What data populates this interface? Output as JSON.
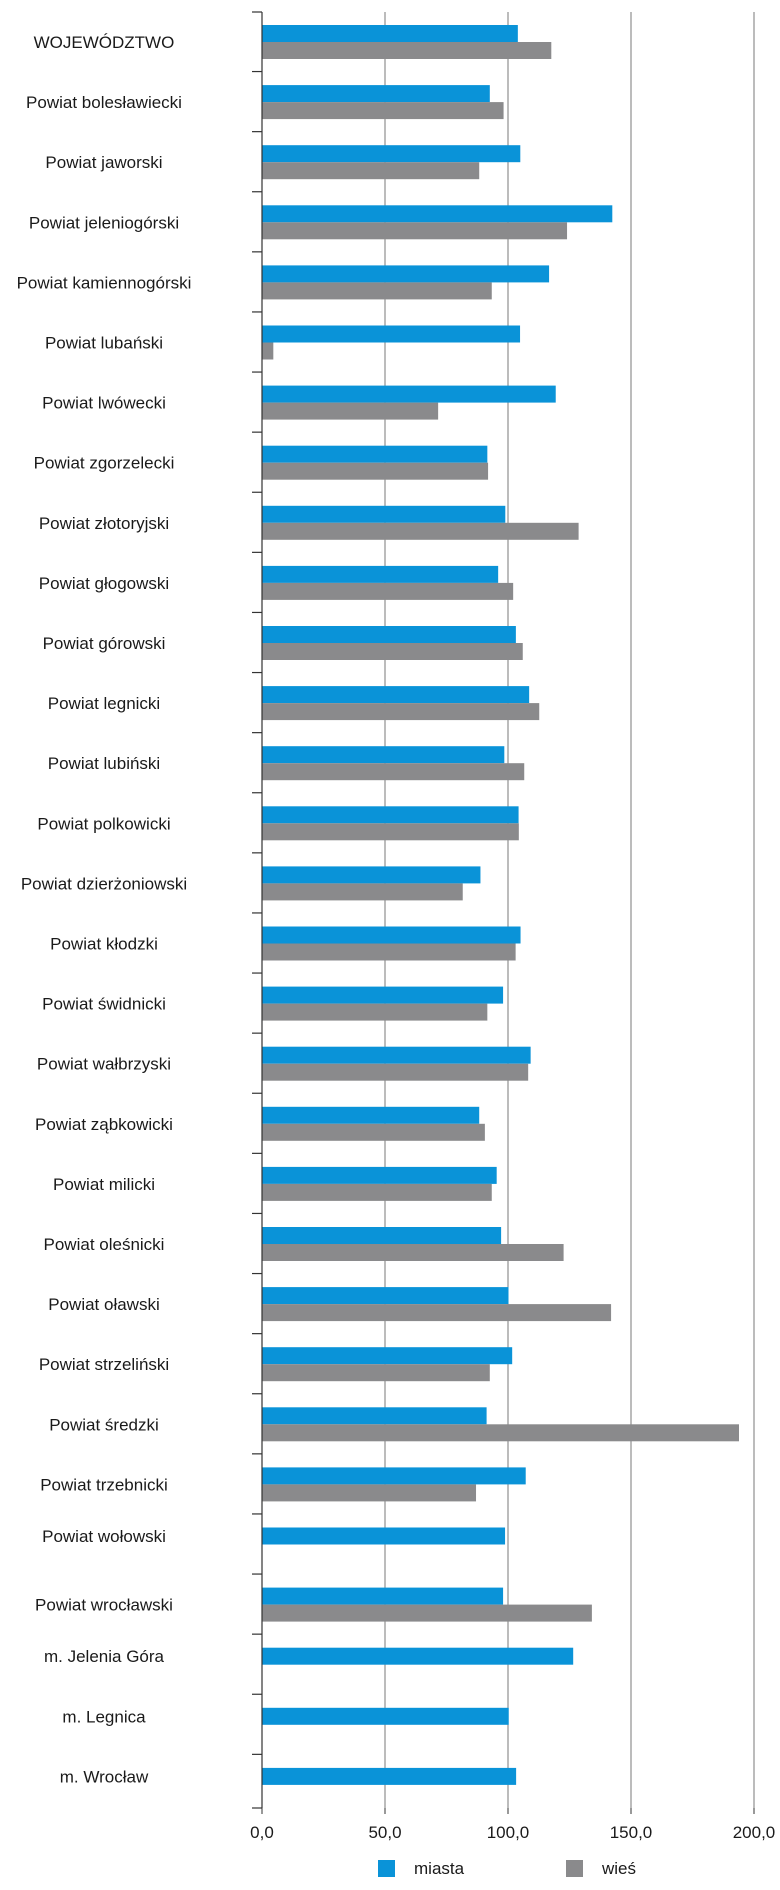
{
  "chart_data": {
    "type": "bar",
    "orientation": "horizontal",
    "title": "",
    "xlabel": "",
    "ylabel": "",
    "xlim": [
      0,
      200
    ],
    "x_ticks": [
      0,
      50,
      100,
      150,
      200
    ],
    "x_tick_labels": [
      "0,0",
      "50,0",
      "100,0",
      "150,0",
      "200,0"
    ],
    "grid": "vertical",
    "legend_position": "bottom",
    "categories": [
      "WOJEWÓDZTWO",
      "Powiat bolesławiecki",
      "Powiat jaworski",
      "Powiat jeleniogórski",
      "Powiat kamiennogórski",
      "Powiat lubański",
      "Powiat lwówecki",
      "Powiat zgorzelecki",
      "Powiat złotoryjski",
      "Powiat głogowski",
      "Powiat górowski",
      "Powiat legnicki",
      "Powiat lubiński",
      "Powiat polkowicki",
      "Powiat dzierżoniowski",
      "Powiat kłodzki",
      "Powiat świdnicki",
      "Powiat wałbrzyski",
      "Powiat ząbkowicki",
      "Powiat milicki",
      "Powiat oleśnicki",
      "Powiat oławski",
      "Powiat strzeliński",
      "Powiat średzki",
      "Powiat trzebnicki",
      "Powiat wołowski",
      "Powiat wrocławski",
      "m. Jelenia Góra",
      "m. Legnica",
      "m. Wrocław"
    ],
    "series": [
      {
        "name": "miasta",
        "color": "#0a93d8",
        "values": [
          104,
          92.6,
          105,
          142.4,
          116.7,
          104.9,
          119.4,
          91.6,
          98.9,
          96,
          103.2,
          108.6,
          98.5,
          104.3,
          88.8,
          105.1,
          98,
          109.2,
          88.3,
          95.4,
          97.2,
          100.2,
          101.7,
          91.3,
          107.2,
          98.8,
          98,
          126.5,
          100.3,
          103.3
        ]
      },
      {
        "name": "wieś",
        "color": "#8a8a8c",
        "values": [
          117.6,
          98.2,
          88.3,
          124,
          93.4,
          4.6,
          71.6,
          91.9,
          128.7,
          102.1,
          106,
          112.7,
          106.6,
          104.4,
          81.6,
          103.1,
          91.6,
          108.2,
          90.6,
          93.4,
          122.6,
          141.9,
          92.6,
          193.9,
          87,
          null,
          134.1,
          null,
          null,
          null
        ]
      }
    ]
  }
}
